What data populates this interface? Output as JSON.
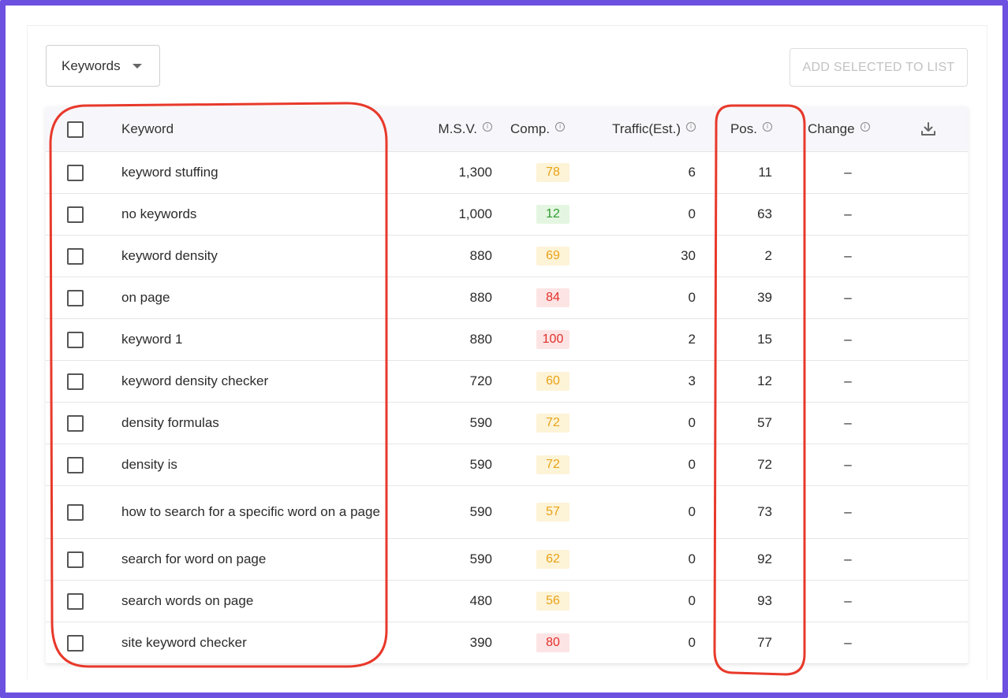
{
  "toolbar": {
    "dropdown_label": "Keywords",
    "add_button_label": "ADD SELECTED TO LIST"
  },
  "table": {
    "headers": {
      "keyword": "Keyword",
      "msv": "M.S.V.",
      "comp": "Comp.",
      "traffic": "Traffic(Est.)",
      "pos": "Pos.",
      "change": "Change"
    },
    "rows": [
      {
        "keyword": "keyword stuffing",
        "msv": "1,300",
        "comp": "78",
        "comp_level": "medium",
        "traffic": "6",
        "pos": "11",
        "change": "–"
      },
      {
        "keyword": "no keywords",
        "msv": "1,000",
        "comp": "12",
        "comp_level": "low",
        "traffic": "0",
        "pos": "63",
        "change": "–"
      },
      {
        "keyword": "keyword density",
        "msv": "880",
        "comp": "69",
        "comp_level": "medium",
        "traffic": "30",
        "pos": "2",
        "change": "–"
      },
      {
        "keyword": "on page",
        "msv": "880",
        "comp": "84",
        "comp_level": "high",
        "traffic": "0",
        "pos": "39",
        "change": "–"
      },
      {
        "keyword": "keyword 1",
        "msv": "880",
        "comp": "100",
        "comp_level": "high",
        "traffic": "2",
        "pos": "15",
        "change": "–"
      },
      {
        "keyword": "keyword density checker",
        "msv": "720",
        "comp": "60",
        "comp_level": "medium",
        "traffic": "3",
        "pos": "12",
        "change": "–"
      },
      {
        "keyword": "density formulas",
        "msv": "590",
        "comp": "72",
        "comp_level": "medium",
        "traffic": "0",
        "pos": "57",
        "change": "–"
      },
      {
        "keyword": "density is",
        "msv": "590",
        "comp": "72",
        "comp_level": "medium",
        "traffic": "0",
        "pos": "72",
        "change": "–"
      },
      {
        "keyword": "how to search for a specific word on a page",
        "msv": "590",
        "comp": "57",
        "comp_level": "medium",
        "traffic": "0",
        "pos": "73",
        "change": "–"
      },
      {
        "keyword": "search for word on page",
        "msv": "590",
        "comp": "62",
        "comp_level": "medium",
        "traffic": "0",
        "pos": "92",
        "change": "–"
      },
      {
        "keyword": "search words on page",
        "msv": "480",
        "comp": "56",
        "comp_level": "medium",
        "traffic": "0",
        "pos": "93",
        "change": "–"
      },
      {
        "keyword": "site keyword checker",
        "msv": "390",
        "comp": "80",
        "comp_level": "high",
        "traffic": "0",
        "pos": "77",
        "change": "–"
      }
    ]
  },
  "colors": {
    "frame": "#6c50e0",
    "annotation": "#e8392b",
    "comp_low_bg": "#e4f6e1",
    "comp_low_fg": "#2e9b2e",
    "comp_medium_bg": "#fdf3d7",
    "comp_medium_fg": "#e8a317",
    "comp_high_bg": "#fde4e4",
    "comp_high_fg": "#e0312b"
  },
  "icons": {
    "dropdown": "caret-down-icon",
    "info": "info-icon",
    "download": "download-icon"
  }
}
